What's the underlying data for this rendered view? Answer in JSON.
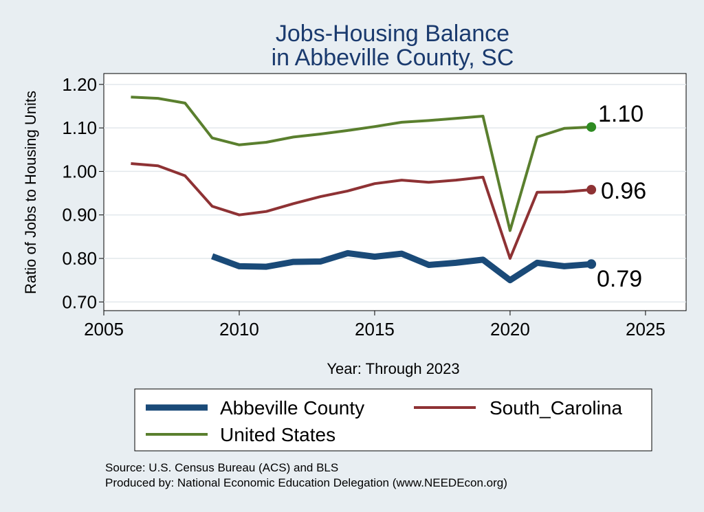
{
  "chart_data": {
    "type": "line",
    "title": [
      "Jobs-Housing Balance",
      "in Abbeville County, SC"
    ],
    "xlabel": "Year: Through 2023",
    "ylabel": "Ratio of Jobs to Housing Units",
    "xlim": [
      2005,
      2026.5
    ],
    "ylim": [
      0.68,
      1.225
    ],
    "xticks": [
      2005,
      2010,
      2015,
      2020,
      2025
    ],
    "yticks": [
      0.7,
      0.8,
      0.9,
      1.0,
      1.1,
      1.2
    ],
    "ytick_labels": [
      "0.70",
      "0.80",
      "0.90",
      "1.00",
      "1.10",
      "1.20"
    ],
    "grid": true,
    "series": [
      {
        "name": "Abbeville County",
        "color": "#1a4a78",
        "x": [
          2009,
          2010,
          2011,
          2012,
          2013,
          2014,
          2015,
          2016,
          2017,
          2018,
          2019,
          2020,
          2021,
          2022,
          2023
        ],
        "values": [
          0.805,
          0.782,
          0.781,
          0.792,
          0.793,
          0.812,
          0.804,
          0.811,
          0.785,
          0.79,
          0.797,
          0.75,
          0.79,
          0.782,
          0.787
        ],
        "end_label": "0.79"
      },
      {
        "name": "South_Carolina",
        "color": "#8e3234",
        "x": [
          2006,
          2007,
          2008,
          2009,
          2010,
          2011,
          2012,
          2013,
          2014,
          2015,
          2016,
          2017,
          2018,
          2019,
          2020,
          2021,
          2022,
          2023
        ],
        "values": [
          1.018,
          1.013,
          0.99,
          0.92,
          0.9,
          0.908,
          0.926,
          0.942,
          0.955,
          0.972,
          0.98,
          0.975,
          0.98,
          0.987,
          0.8,
          0.952,
          0.953,
          0.958
        ],
        "end_label": "0.96"
      },
      {
        "name": "United States",
        "color": "#5a7f2e",
        "marker_color": "#2e8b22",
        "x": [
          2006,
          2007,
          2008,
          2009,
          2010,
          2011,
          2012,
          2013,
          2014,
          2015,
          2016,
          2017,
          2018,
          2019,
          2020,
          2021,
          2022,
          2023
        ],
        "values": [
          1.171,
          1.168,
          1.157,
          1.077,
          1.061,
          1.067,
          1.079,
          1.086,
          1.094,
          1.103,
          1.113,
          1.117,
          1.122,
          1.127,
          0.864,
          1.079,
          1.099,
          1.102
        ],
        "end_label": "1.10"
      }
    ],
    "legend": {
      "position": "bottom",
      "entries": [
        "Abbeville County",
        "South_Carolina",
        "United States"
      ]
    },
    "notes": [
      "Source: U.S. Census Bureau (ACS) and BLS",
      "Produced by: National Economic Education Delegation (www.NEEDEcon.org)"
    ]
  }
}
